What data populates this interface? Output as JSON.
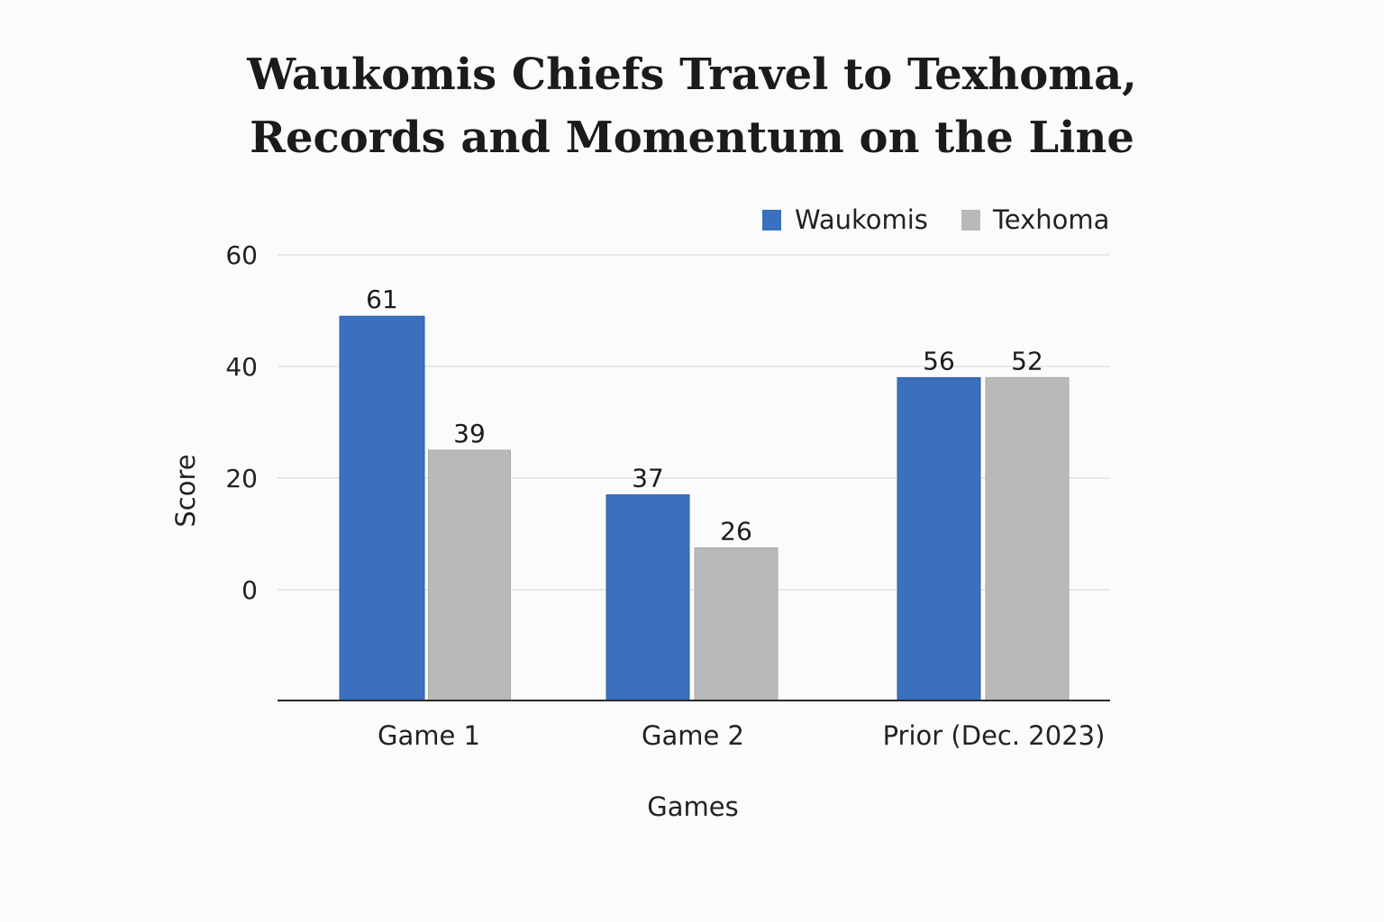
{
  "chart_data": {
    "type": "bar",
    "title_lines": [
      "Waukomis Chiefs Travel to Texhoma,",
      "Records and Momentum on the Line"
    ],
    "xlabel": "Games",
    "ylabel": "Score",
    "categories": [
      "Game 1",
      "Game 2",
      "Prior (Dec. 2023)"
    ],
    "series": [
      {
        "name": "Waukomis",
        "color": "#3a70bd",
        "values": [
          61,
          37,
          56
        ],
        "bar_levels": [
          49,
          17,
          38
        ]
      },
      {
        "name": "Texhoma",
        "color": "#b9b9b9",
        "values": [
          39,
          26,
          52
        ],
        "bar_levels": [
          25,
          7.5,
          38
        ]
      }
    ],
    "yticks": [
      60,
      40,
      20,
      0
    ],
    "ylim": [
      -20,
      60
    ],
    "grid": true,
    "legend": "top-right"
  }
}
